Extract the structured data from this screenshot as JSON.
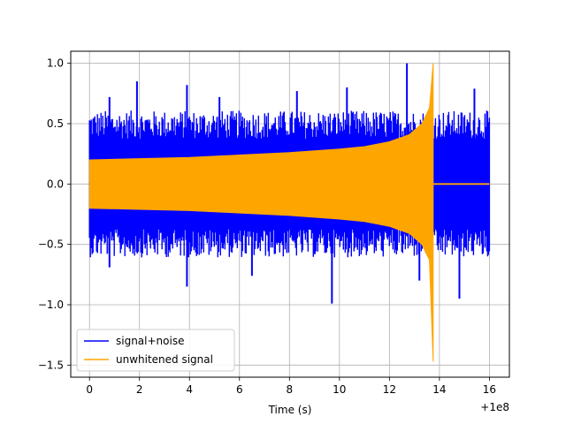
{
  "chart_data": {
    "type": "line",
    "title": "",
    "xlabel": "Time (s)",
    "ylabel": "",
    "x_offset_label": "+1e8",
    "xlim": [
      -0.75,
      16.8
    ],
    "ylim": [
      -1.6,
      1.1
    ],
    "x_ticks": [
      0,
      2,
      4,
      6,
      8,
      10,
      12,
      14,
      16
    ],
    "x_tick_labels": [
      "0",
      "2",
      "4",
      "6",
      "8",
      "10",
      "12",
      "14",
      "16"
    ],
    "y_ticks": [
      -1.5,
      -1.0,
      -0.5,
      0.0,
      0.5,
      1.0
    ],
    "y_tick_labels": [
      "−1.5",
      "−1.0",
      "−0.5",
      "0.0",
      "0.5",
      "1.0"
    ],
    "grid": true,
    "legend_position": "lower-left",
    "series": [
      {
        "name": "signal+noise",
        "color": "#0000ff",
        "x_range": [
          0,
          16
        ],
        "noise_band": 0.52,
        "spikes": [
          {
            "x": 0.8,
            "y": 0.72
          },
          {
            "x": 1.9,
            "y": 0.85
          },
          {
            "x": 3.9,
            "y": 0.82
          },
          {
            "x": 5.2,
            "y": 0.72
          },
          {
            "x": 8.3,
            "y": 0.77
          },
          {
            "x": 10.3,
            "y": 0.8
          },
          {
            "x": 12.7,
            "y": 1.0
          },
          {
            "x": 15.4,
            "y": 0.79
          },
          {
            "x": 0.8,
            "y": -0.69
          },
          {
            "x": 3.9,
            "y": -0.85
          },
          {
            "x": 6.5,
            "y": -0.76
          },
          {
            "x": 9.7,
            "y": -0.99
          },
          {
            "x": 13.2,
            "y": -0.8
          },
          {
            "x": 14.8,
            "y": -0.95
          }
        ]
      },
      {
        "name": "unwhitened signal",
        "color": "#ffa500",
        "x_range": [
          0,
          16
        ],
        "envelope": [
          {
            "x": 0,
            "y": 0.2
          },
          {
            "x": 2,
            "y": 0.21
          },
          {
            "x": 4,
            "y": 0.22
          },
          {
            "x": 6,
            "y": 0.24
          },
          {
            "x": 8,
            "y": 0.26
          },
          {
            "x": 10,
            "y": 0.29
          },
          {
            "x": 11,
            "y": 0.31
          },
          {
            "x": 12,
            "y": 0.35
          },
          {
            "x": 12.8,
            "y": 0.41
          },
          {
            "x": 13.3,
            "y": 0.5
          },
          {
            "x": 13.6,
            "y": 0.63
          },
          {
            "x": 13.75,
            "y": 1.0
          }
        ],
        "min_value": -1.47,
        "merger_x": 13.75,
        "post_merger_value": 0.0
      }
    ]
  }
}
